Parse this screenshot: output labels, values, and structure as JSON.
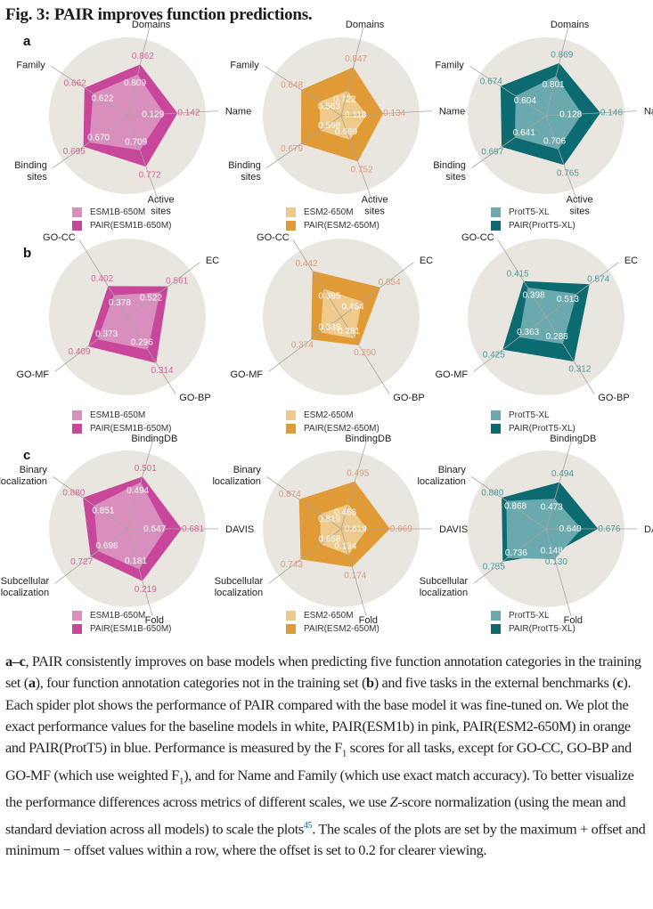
{
  "figure": {
    "title": "Fig. 3: PAIR improves function predictions.",
    "caption": {
      "p1_bold": "a–c",
      "p1": ", PAIR consistently improves on base models when predicting five function annotation categories in the training set (",
      "p1_a": "a",
      "p2": "), four function annotation categories not in the training set (",
      "p2_b": "b",
      "p3": ") and five tasks in the external benchmarks (",
      "p3_c": "c",
      "p4": "). Each spider plot shows the performance of PAIR compared with the base model it was fine-tuned on. We plot the exact performance values for the baseline models in white, PAIR(ESM1b) in pink, PAIR(ESM2-650M) in orange and PAIR(ProtT5) in blue. Performance is measured by the F",
      "p4_sub": "1",
      "p5": " scores for all tasks, except for GO-CC, GO-BP and GO-MF (which use weighted F",
      "p5_sub": "1",
      "p6": "), and for Name and Family (which use exact match accuracy). To better visualize the performance differences across metrics of different scales, we use ",
      "p6_z": "Z",
      "p7": "-score normalization (using the mean and standard deviation across all models) to scale the plots",
      "ref": "45",
      "p8": ". The scales of the plots are set by the maximum + offset and minimum − offset values within a row, where the offset is set to 0.2 for clearer viewing."
    },
    "panel_letters": [
      "a",
      "b",
      "c"
    ]
  },
  "colors": {
    "disk": "#e9e6df",
    "axis_line": "#a9a6a0",
    "pink_base": "#d98fbd",
    "pink_pair": "#c9479b",
    "pink_text": "#d2649f",
    "orange_base": "#eecb8c",
    "orange_pair": "#e09a36",
    "orange_text": "#e09a7a",
    "teal_base": "#6aa9ad",
    "teal_pair": "#0b6b70",
    "teal_text": "#4a9aa3"
  },
  "chart_data": [
    {
      "panel": "a",
      "type": "radar",
      "title": "",
      "axes": [
        "Domains",
        "Name",
        "Active sites",
        "Binding sites",
        "Family"
      ],
      "axis_label_lines": [
        [
          "Domains"
        ],
        [
          "Name"
        ],
        [
          "Active",
          "sites"
        ],
        [
          "Binding",
          "sites"
        ],
        [
          "Family"
        ]
      ],
      "charts": [
        {
          "legend": [
            "ESM1B-650M",
            "PAIR(ESM1B-650M)"
          ],
          "palette": "pink",
          "series": [
            {
              "name": "ESM1B-650M",
              "values": [
                0.809,
                0.129,
                0.709,
                0.67,
                0.622
              ]
            },
            {
              "name": "PAIR(ESM1B-650M)",
              "values": [
                0.862,
                0.142,
                0.772,
                0.695,
                0.662
              ]
            }
          ]
        },
        {
          "legend": [
            "ESM2-650M",
            "PAIR(ESM2-650M)"
          ],
          "palette": "orange",
          "series": [
            {
              "name": "ESM2-650M",
              "values": [
                0.722,
                0.118,
                0.669,
                0.598,
                0.563
              ]
            },
            {
              "name": "PAIR(ESM2-650M)",
              "values": [
                0.847,
                0.134,
                0.752,
                0.679,
                0.648
              ]
            }
          ]
        },
        {
          "legend": [
            "ProtT5-XL",
            "PAIR(ProtT5-XL)"
          ],
          "palette": "teal",
          "series": [
            {
              "name": "ProtT5-XL",
              "values": [
                0.801,
                0.128,
                0.706,
                0.641,
                0.604
              ]
            },
            {
              "name": "PAIR(ProtT5-XL)",
              "values": [
                0.869,
                0.146,
                0.765,
                0.697,
                0.674
              ]
            }
          ]
        }
      ]
    },
    {
      "panel": "b",
      "type": "radar",
      "title": "",
      "axes": [
        "EC",
        "GO-BP",
        "GO-MF",
        "GO-CC"
      ],
      "axis_label_lines": [
        [
          "EC"
        ],
        [
          "GO-BP"
        ],
        [
          "GO-MF"
        ],
        [
          "GO-CC"
        ]
      ],
      "charts": [
        {
          "legend": [
            "ESM1B-650M",
            "PAIR(ESM1B-650M)"
          ],
          "palette": "pink",
          "series": [
            {
              "name": "ESM1B-650M",
              "values": [
                0.522,
                0.296,
                0.373,
                0.378
              ]
            },
            {
              "name": "PAIR(ESM1B-650M)",
              "values": [
                0.561,
                0.314,
                0.409,
                0.402
              ]
            }
          ]
        },
        {
          "legend": [
            "ESM2-650M",
            "PAIR(ESM2-650M)"
          ],
          "palette": "orange",
          "series": [
            {
              "name": "ESM2-650M",
              "values": [
                0.464,
                0.281,
                0.338,
                0.395
              ]
            },
            {
              "name": "PAIR(ESM2-650M)",
              "values": [
                0.554,
                0.29,
                0.374,
                0.442
              ]
            }
          ]
        },
        {
          "legend": [
            "ProtT5-XL",
            "PAIR(ProtT5-XL)"
          ],
          "palette": "teal",
          "series": [
            {
              "name": "ProtT5-XL",
              "values": [
                0.513,
                0.288,
                0.363,
                0.398
              ]
            },
            {
              "name": "PAIR(ProtT5-XL)",
              "values": [
                0.574,
                0.312,
                0.425,
                0.415
              ]
            }
          ]
        }
      ]
    },
    {
      "panel": "c",
      "type": "radar",
      "title": "",
      "axes": [
        "BindingDB",
        "DAVIS",
        "Fold",
        "Subcellular localization",
        "Binary localization"
      ],
      "axis_label_lines": [
        [
          "BindingDB"
        ],
        [
          "DAVIS"
        ],
        [
          "Fold"
        ],
        [
          "Subcellular",
          "localization"
        ],
        [
          "Binary",
          "localization"
        ]
      ],
      "charts": [
        {
          "legend": [
            "ESM1B-650M",
            "PAIR(ESM1B-650M)"
          ],
          "palette": "pink",
          "series": [
            {
              "name": "ESM1B-650M",
              "values": [
                0.494,
                0.647,
                0.181,
                0.696,
                0.851
              ]
            },
            {
              "name": "PAIR(ESM1B-650M)",
              "values": [
                0.501,
                0.681,
                0.219,
                0.727,
                0.88
              ]
            }
          ]
        },
        {
          "legend": [
            "ESM2-650M",
            "PAIR(ESM2-650M)"
          ],
          "palette": "orange",
          "series": [
            {
              "name": "ESM2-650M",
              "values": [
                0.466,
                0.619,
                0.134,
                0.658,
                0.819
              ]
            },
            {
              "name": "PAIR(ESM2-650M)",
              "values": [
                0.495,
                0.669,
                0.174,
                0.743,
                0.874
              ]
            }
          ]
        },
        {
          "legend": [
            "ProtT5-XL",
            "PAIR(ProtT5-XL)"
          ],
          "palette": "teal",
          "series": [
            {
              "name": "ProtT5-XL",
              "values": [
                0.473,
                0.64,
                0.148,
                0.736,
                0.868
              ]
            },
            {
              "name": "PAIR(ProtT5-XL)",
              "values": [
                0.494,
                0.676,
                0.13,
                0.755,
                0.88
              ]
            }
          ]
        }
      ]
    }
  ]
}
